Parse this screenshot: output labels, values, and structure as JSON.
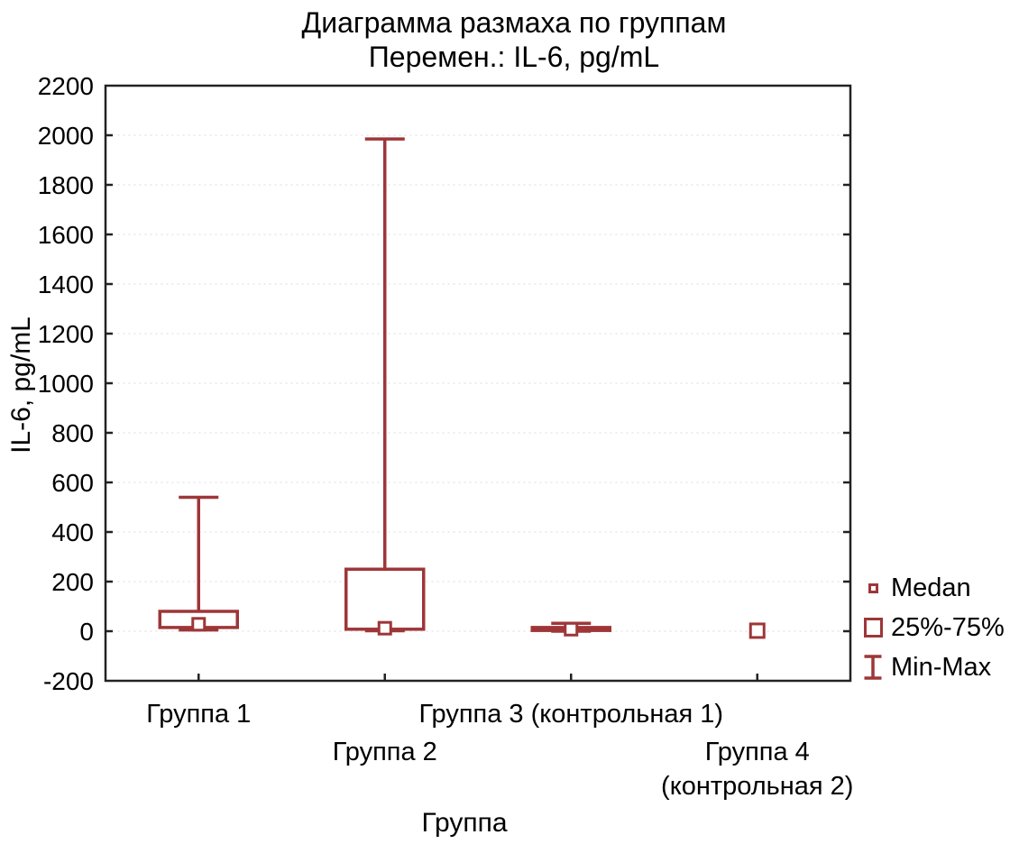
{
  "title": {
    "line1": "Диаграмма размаха по группам",
    "line2": "Перемен.: IL-6, pg/mL"
  },
  "axes": {
    "y_label": "IL-6, pg/mL",
    "x_label": "Группа"
  },
  "legend": {
    "items": [
      {
        "icon": "median-marker-icon",
        "label": "Medan"
      },
      {
        "icon": "iqr-box-icon",
        "label": "25%-75%"
      },
      {
        "icon": "min-max-whisker-icon",
        "label": "Min-Max"
      }
    ]
  },
  "colors": {
    "series": "#9E3638",
    "frame": "#222222",
    "grid": "#e7e7e7",
    "text": "#000000",
    "background": "#ffffff"
  },
  "chart_data": {
    "type": "boxplot",
    "title": "Диаграмма размаха по группам",
    "subtitle": "Перемен.: IL-6, pg/mL",
    "xlabel": "Группа",
    "ylabel": "IL-6, pg/mL",
    "ylim": [
      -200,
      2200
    ],
    "ytick_step": 200,
    "grid": true,
    "legend_position": "right",
    "legend_entries": [
      "Medan",
      "25%-75%",
      "Min-Max"
    ],
    "groups": [
      {
        "label_lines": [
          "Группа 1"
        ],
        "label_row": 0,
        "min": 5,
        "q1": 15,
        "median": 28,
        "q3": 80,
        "max": 540
      },
      {
        "label_lines": [
          "Группа 2"
        ],
        "label_row": 1,
        "min": 2,
        "q1": 8,
        "median": 12,
        "q3": 250,
        "max": 1985
      },
      {
        "label_lines": [
          "Группа 3 (контрольная 1)"
        ],
        "label_row": 0,
        "min": 0,
        "q1": 3,
        "median": 8,
        "q3": 15,
        "max": 32
      },
      {
        "label_lines": [
          "Группа 4",
          "(контрольная 2)"
        ],
        "label_row": 1,
        "min": null,
        "q1": null,
        "median": 2,
        "q3": null,
        "max": null
      }
    ]
  }
}
